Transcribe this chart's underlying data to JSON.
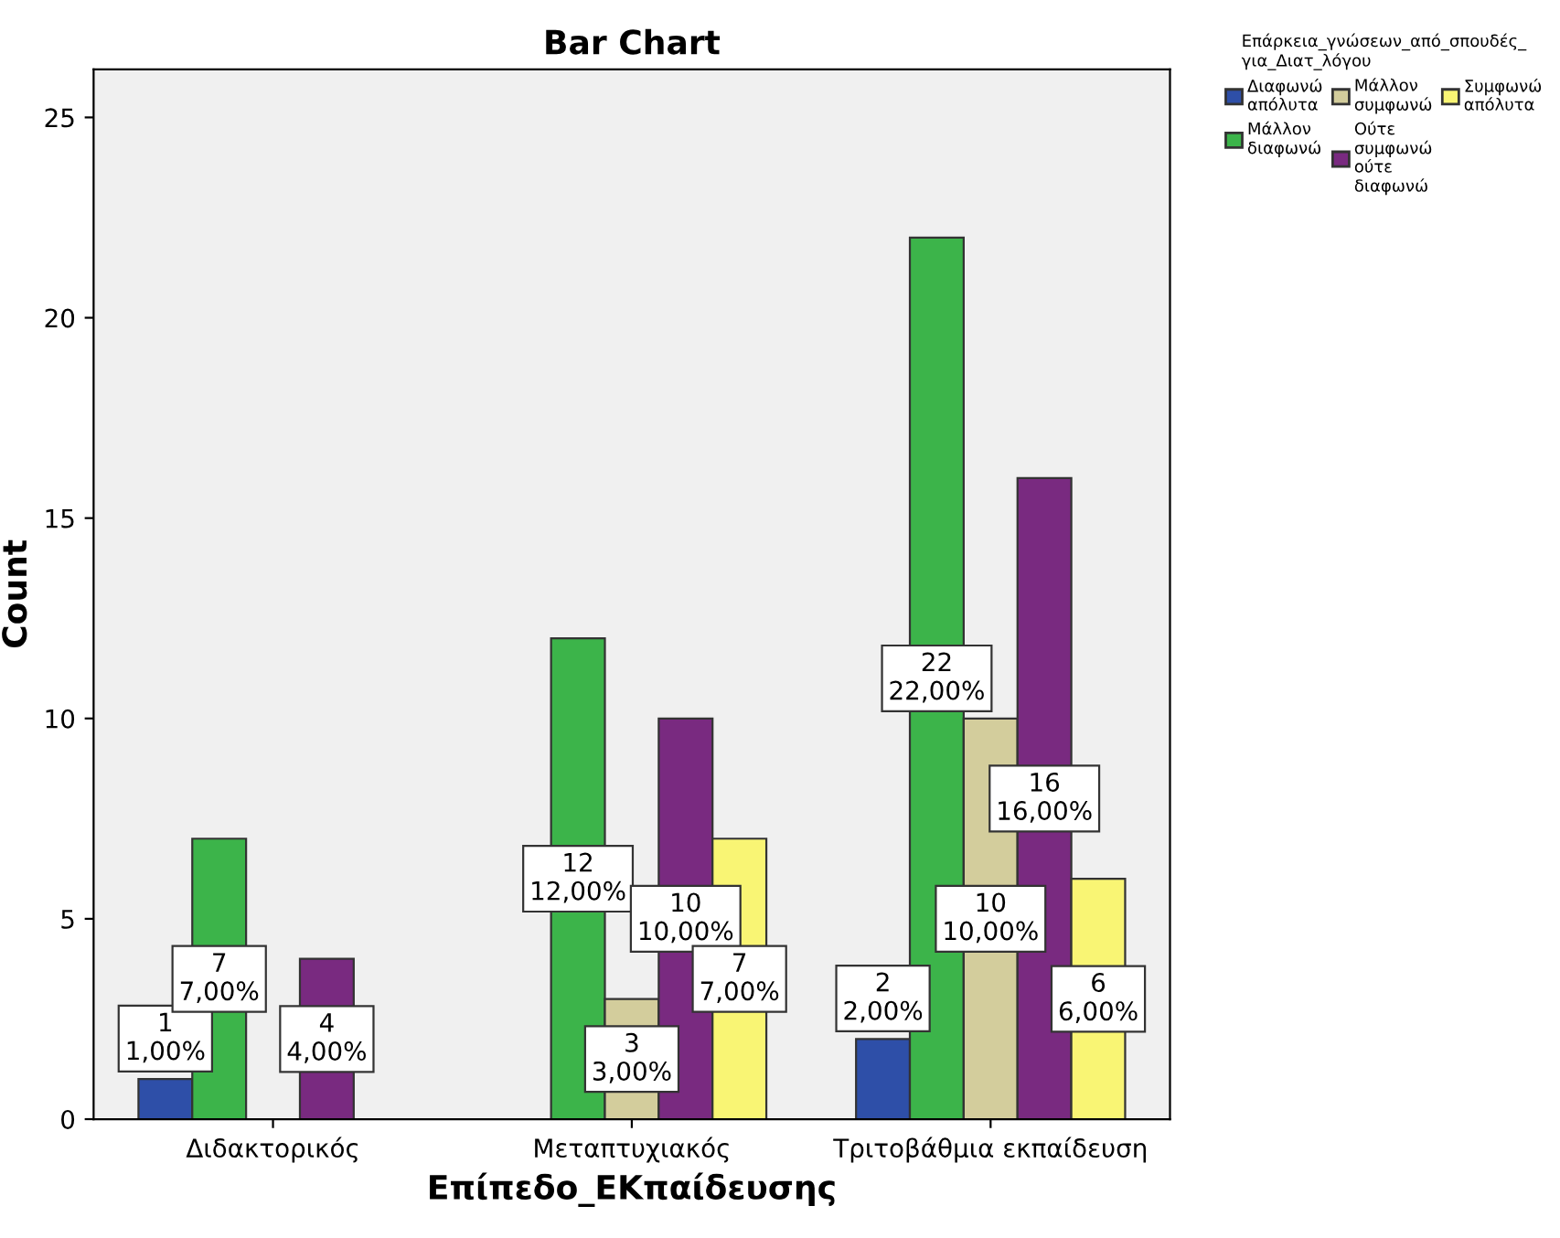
{
  "chart_data": {
    "type": "bar",
    "title": "Bar Chart",
    "xlabel": "Επίπεδο_ΕΚπαίδευσης",
    "ylabel": "Count",
    "legend_title": "Επάρκεια_γνώσεων_από_σπουδές_\nγια_Διατ_λόγου",
    "categories": [
      "Διδακτορικός",
      "Μεταπτυχιακός",
      "Τριτοβάθμια εκπαίδευση"
    ],
    "series": [
      {
        "name": "Διαφωνώ\nαπόλυτα",
        "color": "#2e4fa8",
        "values": [
          1,
          null,
          2
        ],
        "value_labels": [
          "1\n1,00%",
          null,
          "2\n2,00%"
        ]
      },
      {
        "name": "Μάλλον\nδιαφωνώ",
        "color": "#3cb44a",
        "values": [
          7,
          12,
          22
        ],
        "value_labels": [
          "7\n7,00%",
          "12\n12,00%",
          "22\n22,00%"
        ]
      },
      {
        "name": "Μάλλον\nσυμφωνώ",
        "color": "#d3cd9c",
        "values": [
          null,
          3,
          10
        ],
        "value_labels": [
          null,
          "3\n3,00%",
          "10\n10,00%"
        ]
      },
      {
        "name": "Ούτε\nσυμφωνώ\nούτε\nδιαφωνώ",
        "color": "#792a80",
        "values": [
          4,
          10,
          16
        ],
        "value_labels": [
          "4\n4,00%",
          "10\n10,00%",
          "16\n16,00%"
        ]
      },
      {
        "name": "Συμφωνώ\nαπόλυτα",
        "color": "#f9f574",
        "values": [
          null,
          7,
          6
        ],
        "value_labels": [
          null,
          "7\n7,00%",
          "6\n6,00%"
        ]
      }
    ],
    "ylim": [
      0,
      26.2
    ],
    "yticks": [
      0,
      5,
      10,
      15,
      20,
      25
    ],
    "grid": false,
    "legend": "top right"
  }
}
